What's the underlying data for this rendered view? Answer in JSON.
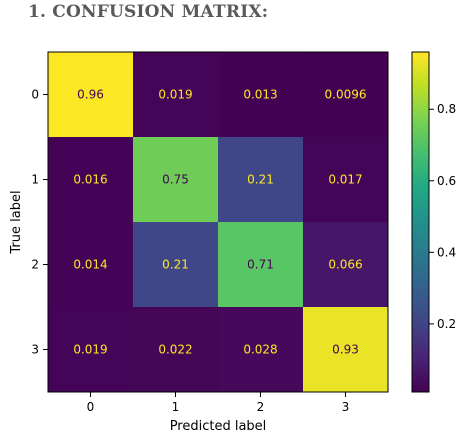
{
  "heading": "1.  CONFUSION MATRIX:",
  "chart_data": {
    "type": "heatmap",
    "xlabel": "Predicted label",
    "ylabel": "True label",
    "x_categories": [
      "0",
      "1",
      "2",
      "3"
    ],
    "y_categories": [
      "0",
      "1",
      "2",
      "3"
    ],
    "values": [
      [
        0.96,
        0.019,
        0.013,
        0.0096
      ],
      [
        0.016,
        0.75,
        0.21,
        0.017
      ],
      [
        0.014,
        0.21,
        0.71,
        0.066
      ],
      [
        0.019,
        0.022,
        0.028,
        0.93
      ]
    ],
    "value_labels": [
      [
        "0.96",
        "0.019",
        "0.013",
        "0.0096"
      ],
      [
        "0.016",
        "0.75",
        "0.21",
        "0.017"
      ],
      [
        "0.014",
        "0.21",
        "0.71",
        "0.066"
      ],
      [
        "0.019",
        "0.022",
        "0.028",
        "0.93"
      ]
    ],
    "colormap": "viridis",
    "colorbar": {
      "range": [
        0.0096,
        0.96
      ],
      "ticks": [
        0.2,
        0.4,
        0.6,
        0.8
      ],
      "tick_labels": [
        "0.2",
        "0.4",
        "0.6",
        "0.8"
      ]
    },
    "text_colors": {
      "on_dark": "#fde725",
      "on_light": "#440154"
    },
    "grid": false
  }
}
